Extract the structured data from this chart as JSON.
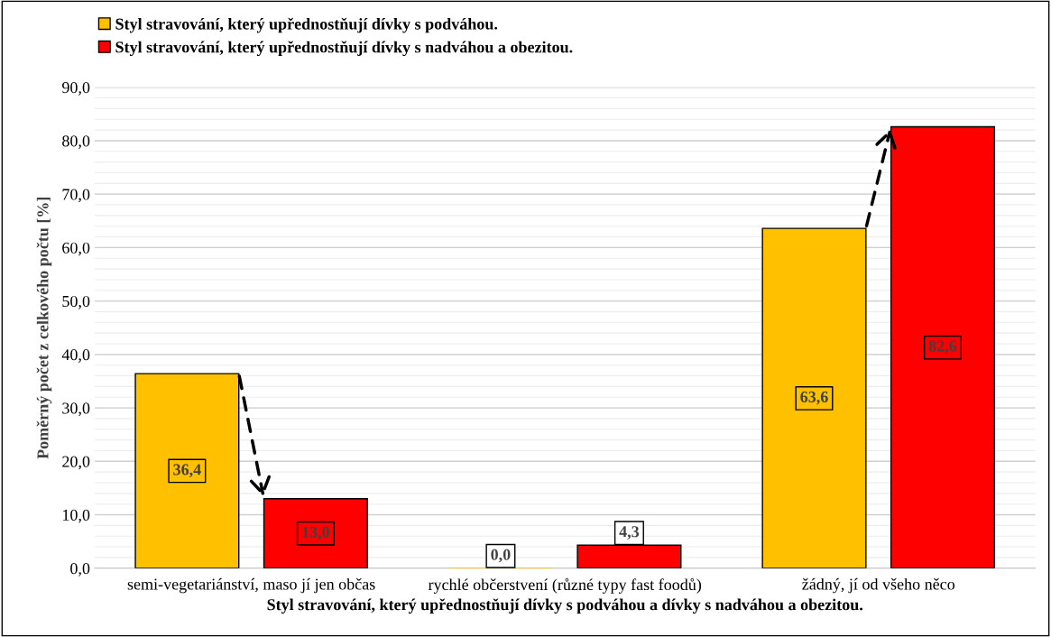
{
  "chart_data": {
    "type": "bar",
    "xlabel": "Styl stravování, který upřednostňují dívky s podváhou a dívky s nadváhou a obezitou.",
    "ylabel": "Poměrný počet z celkového počtu [%]",
    "categories": [
      "semi-vegetariánství, maso jí jen občas",
      "rychlé občerstvení (různé typy fast foodů)",
      "žádný, jí od všeho něco"
    ],
    "series": [
      {
        "name": "Styl stravování, který upřednostňují dívky s podváhou.",
        "color": "#ffc000",
        "values": [
          36.4,
          0.0,
          63.6
        ],
        "value_labels": [
          "36,4",
          "0,0",
          "63,6"
        ]
      },
      {
        "name": "Styl stravování, který upřednostňují dívky s nadváhou a obezitou.",
        "color": "#ff0000",
        "values": [
          13.0,
          4.3,
          82.6
        ],
        "value_labels": [
          "13,0",
          "4,3",
          "82,6"
        ]
      }
    ],
    "ylim": [
      0,
      90
    ],
    "yticks": [
      {
        "value": 0,
        "label": "0,0"
      },
      {
        "value": 10,
        "label": "10,0"
      },
      {
        "value": 20,
        "label": "20,0"
      },
      {
        "value": 30,
        "label": "30,0"
      },
      {
        "value": 40,
        "label": "40,0"
      },
      {
        "value": 50,
        "label": "50,0"
      },
      {
        "value": 60,
        "label": "60,0"
      },
      {
        "value": 70,
        "label": "70,0"
      },
      {
        "value": 80,
        "label": "80,0"
      },
      {
        "value": 90,
        "label": "90,0"
      }
    ],
    "grid": "y",
    "legend": "top left"
  }
}
